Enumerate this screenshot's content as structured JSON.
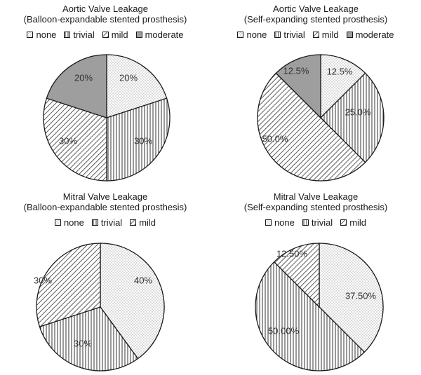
{
  "colors": {
    "none": "#ffffff",
    "trivial": "#ffffff",
    "mild": "#ffffff",
    "moderate": "#9e9e9e",
    "outline": "#1a1a1a",
    "text": "#1a1a1a"
  },
  "patterns": {
    "none": "dots",
    "trivial": "vertical-lines",
    "mild": "diagonal-lines",
    "moderate": "solid-gray"
  },
  "chart_data": [
    {
      "type": "pie",
      "title_line1": "Aortic Valve Leakage",
      "title_line2": "(Balloon-expandable stented prosthesis)",
      "legend": [
        "none",
        "trivial",
        "mild",
        "moderate"
      ],
      "slices": [
        {
          "category": "none",
          "value": 20,
          "label": "20%"
        },
        {
          "category": "trivial",
          "value": 30,
          "label": "30%"
        },
        {
          "category": "mild",
          "value": 30,
          "label": "30%"
        },
        {
          "category": "moderate",
          "value": 20,
          "label": "20%"
        }
      ]
    },
    {
      "type": "pie",
      "title_line1": "Aortic Valve Leakage",
      "title_line2": "(Self-expanding stented prosthesis)",
      "legend": [
        "none",
        "trivial",
        "mild",
        "moderate"
      ],
      "slices": [
        {
          "category": "none",
          "value": 12.5,
          "label": "12.5%"
        },
        {
          "category": "trivial",
          "value": 25.0,
          "label": "25.0%"
        },
        {
          "category": "mild",
          "value": 50.0,
          "label": "50.0%"
        },
        {
          "category": "moderate",
          "value": 12.5,
          "label": "12.5%"
        }
      ]
    },
    {
      "type": "pie",
      "title_line1": "Mitral Valve Leakage",
      "title_line2": "(Balloon-expandable stented prosthesis)",
      "legend": [
        "none",
        "trivial",
        "mild"
      ],
      "slices": [
        {
          "category": "none",
          "value": 40,
          "label": "40%"
        },
        {
          "category": "trivial",
          "value": 30,
          "label": "30%"
        },
        {
          "category": "mild",
          "value": 30,
          "label": "30%"
        }
      ]
    },
    {
      "type": "pie",
      "title_line1": "Mitral Valve Leakage",
      "title_line2": "(Self-expanding stented prosthesis)",
      "legend": [
        "none",
        "trivial",
        "mild"
      ],
      "slices": [
        {
          "category": "none",
          "value": 37.5,
          "label": "37.50%"
        },
        {
          "category": "trivial",
          "value": 50.0,
          "label": "50.00%"
        },
        {
          "category": "mild",
          "value": 12.5,
          "label": "12.50%"
        }
      ]
    }
  ]
}
